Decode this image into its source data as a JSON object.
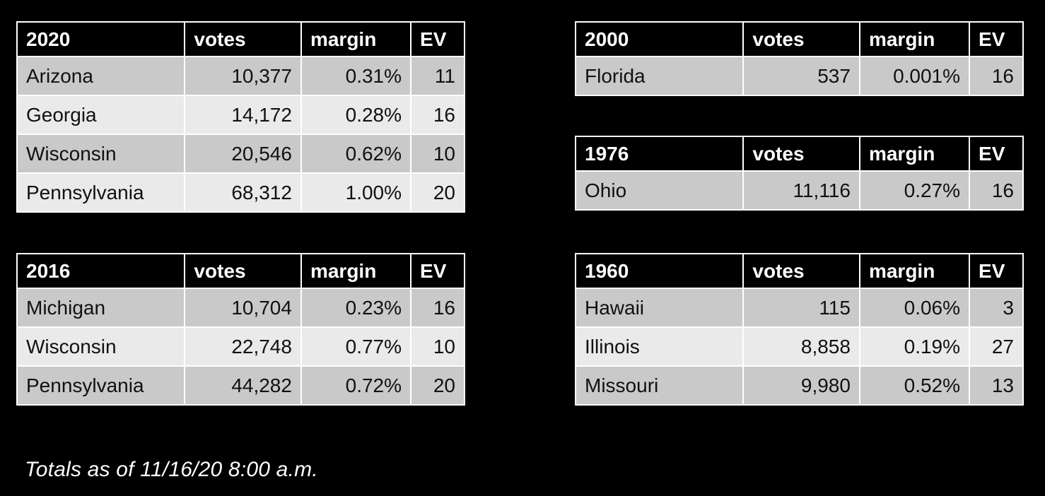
{
  "slide": {
    "background": "#000000",
    "footer_note": "Totals as of 11/16/20 8:00 a.m."
  },
  "colors": {
    "header_bg": "#000000",
    "header_text": "#ffffff",
    "row_dark": "#c9c9c9",
    "row_light": "#eaeaea",
    "cell_text": "#111111",
    "border": "#ffffff"
  },
  "tables": [
    {
      "year": "2020",
      "headers": {
        "votes": "votes",
        "margin": "margin",
        "ev": "EV"
      },
      "rows": [
        {
          "state": "Arizona",
          "votes": "10,377",
          "margin": "0.31%",
          "ev": "11"
        },
        {
          "state": "Georgia",
          "votes": "14,172",
          "margin": "0.28%",
          "ev": "16"
        },
        {
          "state": "Wisconsin",
          "votes": "20,546",
          "margin": "0.62%",
          "ev": "10"
        },
        {
          "state": "Pennsylvania",
          "votes": "68,312",
          "margin": "1.00%",
          "ev": "20"
        }
      ]
    },
    {
      "year": "2000",
      "headers": {
        "votes": "votes",
        "margin": "margin",
        "ev": "EV"
      },
      "rows": [
        {
          "state": "Florida",
          "votes": "537",
          "margin": "0.001%",
          "ev": "16"
        }
      ]
    },
    {
      "year": "1976",
      "headers": {
        "votes": "votes",
        "margin": "margin",
        "ev": "EV"
      },
      "rows": [
        {
          "state": "Ohio",
          "votes": "11,116",
          "margin": "0.27%",
          "ev": "16"
        }
      ]
    },
    {
      "year": "2016",
      "headers": {
        "votes": "votes",
        "margin": "margin",
        "ev": "EV"
      },
      "rows": [
        {
          "state": "Michigan",
          "votes": "10,704",
          "margin": "0.23%",
          "ev": "16"
        },
        {
          "state": "Wisconsin",
          "votes": "22,748",
          "margin": "0.77%",
          "ev": "10"
        },
        {
          "state": "Pennsylvania",
          "votes": "44,282",
          "margin": "0.72%",
          "ev": "20"
        }
      ]
    },
    {
      "year": "1960",
      "headers": {
        "votes": "votes",
        "margin": "margin",
        "ev": "EV"
      },
      "rows": [
        {
          "state": "Hawaii",
          "votes": "115",
          "margin": "0.06%",
          "ev": "3"
        },
        {
          "state": "Illinois",
          "votes": "8,858",
          "margin": "0.19%",
          "ev": "27"
        },
        {
          "state": "Missouri",
          "votes": "9,980",
          "margin": "0.52%",
          "ev": "13"
        }
      ]
    }
  ]
}
